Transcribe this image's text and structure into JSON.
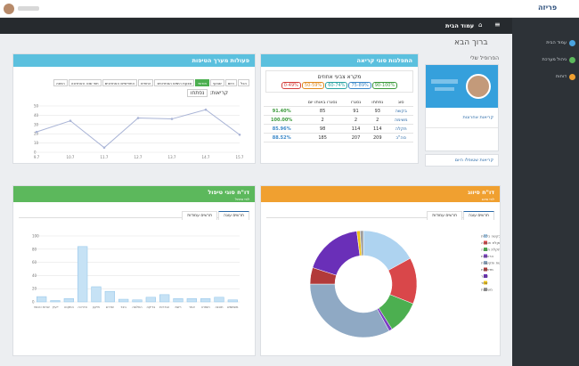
{
  "header": {
    "logo": "פריזה",
    "page_title": "עמוד הבית"
  },
  "sidebar": {
    "items": [
      "עמוד הבית",
      "ניהול מערכת",
      "דוחות"
    ]
  },
  "welcome": "ברוך הבא",
  "profile": {
    "title": "הפרופיל שלי",
    "recent": "קריאות אחרונות",
    "handled_today": "קריאות שטופלו היום"
  },
  "call_types": {
    "title": "התפלגות סוגי קריאה",
    "legend_title": "מקרא צבעי אחוזים",
    "legend": [
      {
        "label": "90-100%",
        "color": "#3c9a3c"
      },
      {
        "label": "75-89%",
        "color": "#3a87c8"
      },
      {
        "label": "60-74%",
        "color": "#2aa3a3"
      },
      {
        "label": "50-59%",
        "color": "#e08a1e"
      },
      {
        "label": "0-49%",
        "color": "#d43f3a"
      }
    ],
    "columns": [
      "סוג",
      "נפתחו",
      "נסגרו",
      "נסגרו באותו יום"
    ],
    "rows": [
      {
        "type": "בקשה",
        "opened": "93",
        "closed": "91",
        "same_day": "85",
        "pct": "91.40%",
        "color": "#3c9a3c"
      },
      {
        "type": "משימה",
        "opened": "2",
        "closed": "2",
        "same_day": "2",
        "pct": "100.00%",
        "color": "#3c9a3c"
      },
      {
        "type": "תקלה",
        "opened": "114",
        "closed": "114",
        "same_day": "98",
        "pct": "85.96%",
        "color": "#3a87c8"
      },
      {
        "type": "סה\"כ",
        "opened": "209",
        "closed": "207",
        "same_day": "185",
        "pct": "88.52%",
        "color": "#3a87c8"
      }
    ]
  },
  "activity": {
    "title": "פעולות מערך הטיפות",
    "filters": [
      "הכל",
      "היום",
      "שבועי",
      "חודשי",
      "שבעת הימים האחרונים",
      "החודש",
      "החודשיים האחרונים",
      "חצי שנה האחרונה",
      "השנה"
    ],
    "active_filter": 3,
    "calls_label": "קריאות:",
    "calls_select": "נפתחו",
    "chart": {
      "type": "line",
      "color": "#a9b4d6",
      "categories": [
        "9.7",
        "10.7",
        "11.7",
        "12.7",
        "13.7",
        "14.7",
        "15.7"
      ],
      "values": [
        22,
        34,
        5,
        37,
        36,
        46,
        19
      ],
      "ylim": [
        0,
        50
      ],
      "yticks": [
        0,
        10,
        20,
        30,
        40,
        50
      ],
      "grid": true
    }
  },
  "treatment_report": {
    "title": "דו\"ח סוגי טיפול",
    "subtitle": "לפי טיפול",
    "tabs": [
      "תרשים עוגה",
      "תרשים עמודות"
    ],
    "chart": {
      "type": "bar",
      "color": "#c6e2f5",
      "border": "#8ec3e8",
      "categories": [
        "שרות טכנאי",
        "ייעוץ",
        "התקנה",
        "הדרכה",
        "תיקון",
        "שדרוג",
        "גיבוי",
        "החלפה",
        "בדיקה",
        "הגדרות",
        "רשת",
        "אחר",
        "חומרה",
        "תוכנה",
        "משתמש"
      ],
      "values": [
        8,
        2,
        5,
        84,
        23,
        16,
        4,
        3,
        7,
        11,
        5,
        5,
        5,
        7,
        3
      ],
      "ylim": [
        0,
        100
      ],
      "yticks": [
        0,
        20,
        40,
        60,
        80,
        100
      ],
      "grid": true
    }
  },
  "classification_report": {
    "title": "דו\"ח סיווג",
    "subtitle": "לפי סיווג",
    "tabs": [
      "תרשים עוגה",
      "תרשים עמודות"
    ],
    "chart": {
      "type": "pie",
      "categories": [
        "בקשה כללית",
        "תקלת חומרה",
        "תקלת תוכנה",
        "הרשאות",
        "רשת ותקשורת",
        "מדפסות",
        "דואר",
        "אחר",
        "משימות"
      ],
      "values": [
        17,
        14,
        10,
        1,
        33,
        5,
        18,
        1,
        1
      ],
      "colors": [
        "#aed3f0",
        "#d9474a",
        "#4caf50",
        "#7b3fc4",
        "#8fa9c4",
        "#b23a3a",
        "#6a2fb8",
        "#f0c419",
        "#9e9e9e"
      ]
    }
  }
}
